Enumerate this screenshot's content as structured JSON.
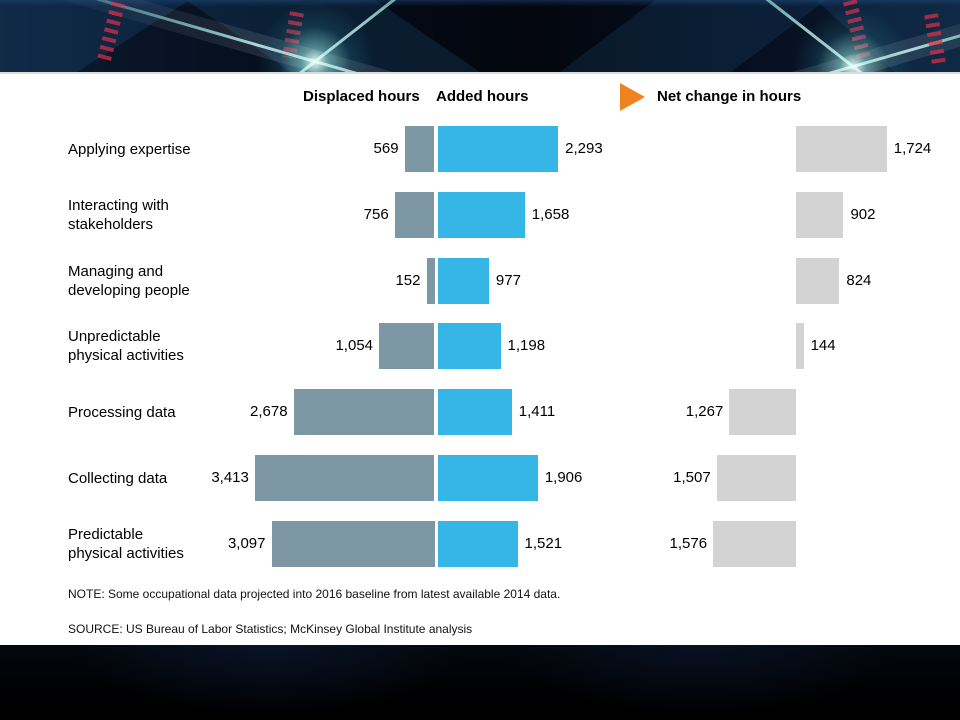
{
  "header": {
    "displaced": "Displaced hours",
    "added": "Added hours",
    "net": "Net change in hours"
  },
  "icons": {
    "net_change_arrow": "right-pointing-triangle"
  },
  "colors": {
    "displaced_bar": "#7d97a5",
    "added_bar": "#36b6e6",
    "net_bar": "#d3d3d3",
    "arrow": "#ef8322",
    "text": "#000000",
    "panel": "#ffffff",
    "banner": "#060d1c"
  },
  "chart_data": {
    "type": "bar",
    "orientation": "horizontal-diverging",
    "title": "",
    "unit": "hours",
    "legend_position": "top",
    "grid": false,
    "value_axis_hidden": true,
    "categories": [
      [
        "Applying expertise"
      ],
      [
        "Interacting with",
        "stakeholders"
      ],
      [
        "Managing and",
        "developing people"
      ],
      [
        "Unpredictable",
        "physical activities"
      ],
      [
        "Processing data"
      ],
      [
        "Collecting data"
      ],
      [
        "Predictable",
        "physical activities"
      ]
    ],
    "series": [
      {
        "name": "Displaced hours",
        "color": "#7d97a5",
        "values": [
          569,
          756,
          152,
          1054,
          2678,
          3413,
          3097
        ],
        "labels": [
          "569",
          "756",
          "152",
          "1,054",
          "2,678",
          "3,413",
          "3,097"
        ]
      },
      {
        "name": "Added hours",
        "color": "#36b6e6",
        "values": [
          2293,
          1658,
          977,
          1198,
          1411,
          1906,
          1521
        ],
        "labels": [
          "2,293",
          "1,658",
          "977",
          "1,198",
          "1,411",
          "1,906",
          "1,521"
        ]
      },
      {
        "name": "Net change in hours",
        "color": "#d3d3d3",
        "values": [
          1724,
          902,
          824,
          144,
          -1267,
          -1507,
          -1576
        ],
        "labels": [
          "1,724",
          "902",
          "824",
          "144",
          "1,267",
          "1,507",
          "1,576"
        ]
      }
    ]
  },
  "footer": {
    "note": "NOTE: Some occupational data projected into 2016 baseline from latest available 2014 data.",
    "source": "SOURCE:  US Bureau of Labor Statistics; McKinsey Global Institute analysis"
  }
}
